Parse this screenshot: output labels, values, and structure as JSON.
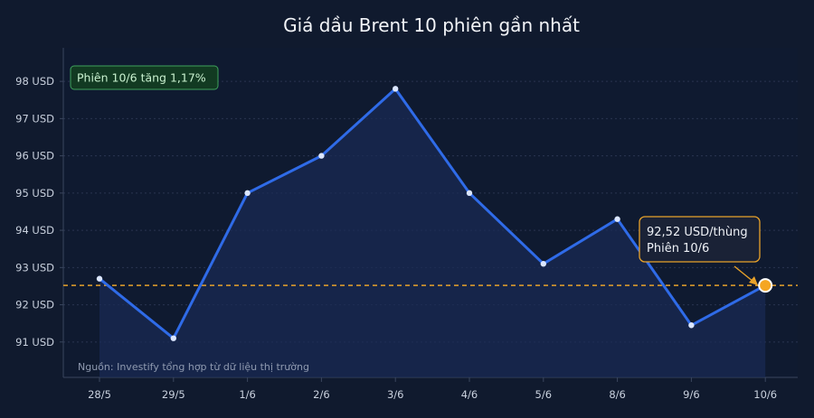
{
  "chart_data": {
    "type": "line",
    "title": "Giá dầu Brent 10 phiên gần nhất",
    "xlabel": "",
    "ylabel": "",
    "categories": [
      "28/5",
      "29/5",
      "1/6",
      "2/6",
      "3/6",
      "4/6",
      "5/6",
      "8/6",
      "9/6",
      "10/6"
    ],
    "series": [
      {
        "values": [
          92.7,
          91.1,
          95.0,
          96.0,
          97.8,
          95.0,
          93.1,
          94.3,
          91.45,
          92.52
        ]
      }
    ],
    "ylim": [
      90.05,
      98.9
    ],
    "yticks": [
      91,
      92,
      93,
      94,
      95,
      96,
      97,
      98
    ],
    "ytick_labels": [
      "91 USD",
      "92 USD",
      "93 USD",
      "94 USD",
      "95 USD",
      "96 USD",
      "97 USD",
      "98 USD"
    ],
    "grid": true,
    "reference_line": {
      "value": 92.52
    },
    "highlight_box": {
      "text": "Phiên 10/6 tăng 1,17%"
    },
    "callout": {
      "index": 9,
      "line1": "92,52 USD/thùng",
      "line2": "Phiên 10/6"
    },
    "source": "Nguồn: Investify tổng hợp từ dữ liệu thị trường",
    "colors": {
      "background": "#101a2e",
      "plot_background": "#0f1a30",
      "line": "#2f6be8",
      "area": "#1a2b55",
      "marker": "#dbe6ff",
      "reference_line": "#e8a22a",
      "highlight_fill": "#123a22",
      "highlight_border": "#3fa25c",
      "highlight_text": "#c9f1cf",
      "callout_fill": "#1a2236",
      "callout_border": "#e8a22a",
      "callout_marker": "#f5a623"
    }
  }
}
